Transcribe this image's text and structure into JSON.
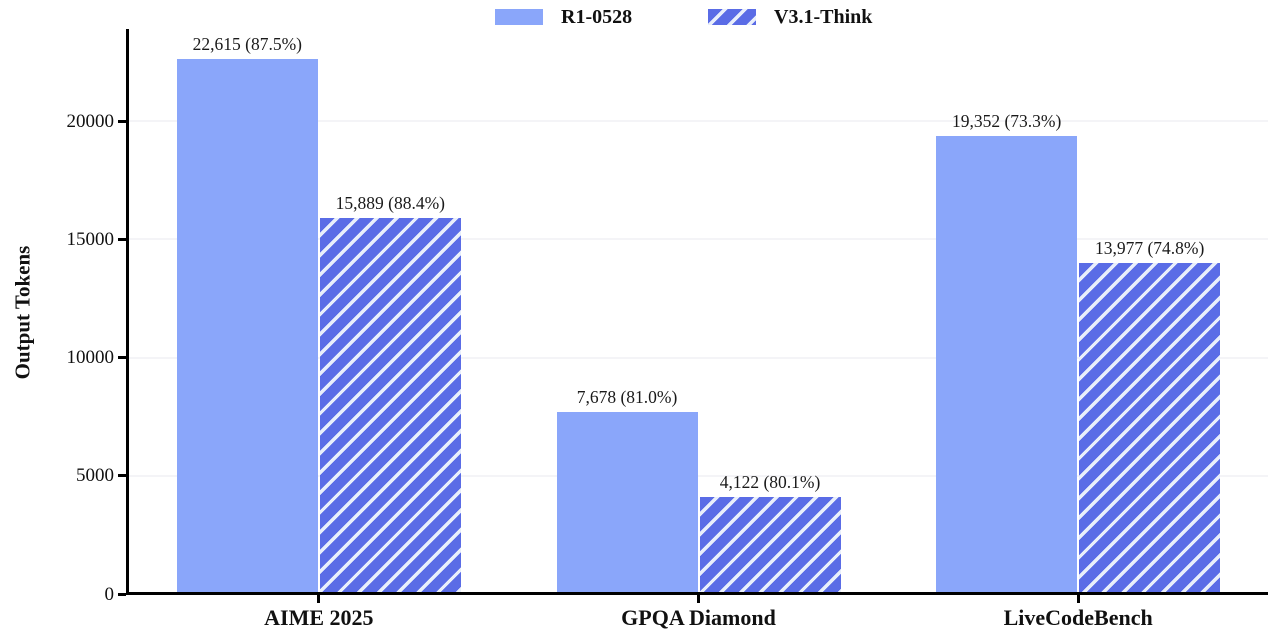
{
  "legend": {
    "entries": [
      {
        "label": "R1-0528",
        "style": "solid"
      },
      {
        "label": "V3.1-Think",
        "style": "hatched"
      }
    ]
  },
  "chart_data": {
    "type": "bar",
    "title": "",
    "ylabel": "Output Tokens",
    "xlabel": "",
    "categories": [
      "AIME 2025",
      "GPQA Diamond",
      "LiveCodeBench"
    ],
    "series": [
      {
        "name": "R1-0528",
        "style": "solid",
        "color": "#8aa6fa",
        "values": [
          22615,
          7678,
          19352
        ],
        "accuracy_percent": [
          87.5,
          81.0,
          73.3
        ],
        "bar_labels": [
          "22,615 (87.5%)",
          "7,678 (81.0%)",
          "19,352 (73.3%)"
        ]
      },
      {
        "name": "V3.1-Think",
        "style": "hatched",
        "color": "#5a6ce6",
        "hatch_color": "#e9effb",
        "hatch_pattern": "/",
        "values": [
          15889,
          4122,
          13977
        ],
        "accuracy_percent": [
          88.4,
          80.1,
          74.8
        ],
        "bar_labels": [
          "15,889 (88.4%)",
          "4,122 (80.1%)",
          "13,977 (74.8%)"
        ]
      }
    ],
    "yticks": [
      0,
      5000,
      10000,
      15000,
      20000
    ],
    "ylim": [
      0,
      23850
    ],
    "grid": "horizontal-light",
    "legend_position": "top-center",
    "colors": {
      "axis": "#000000",
      "gridline": "#f4f4f7",
      "text": "#111111",
      "background": "#ffffff"
    }
  }
}
